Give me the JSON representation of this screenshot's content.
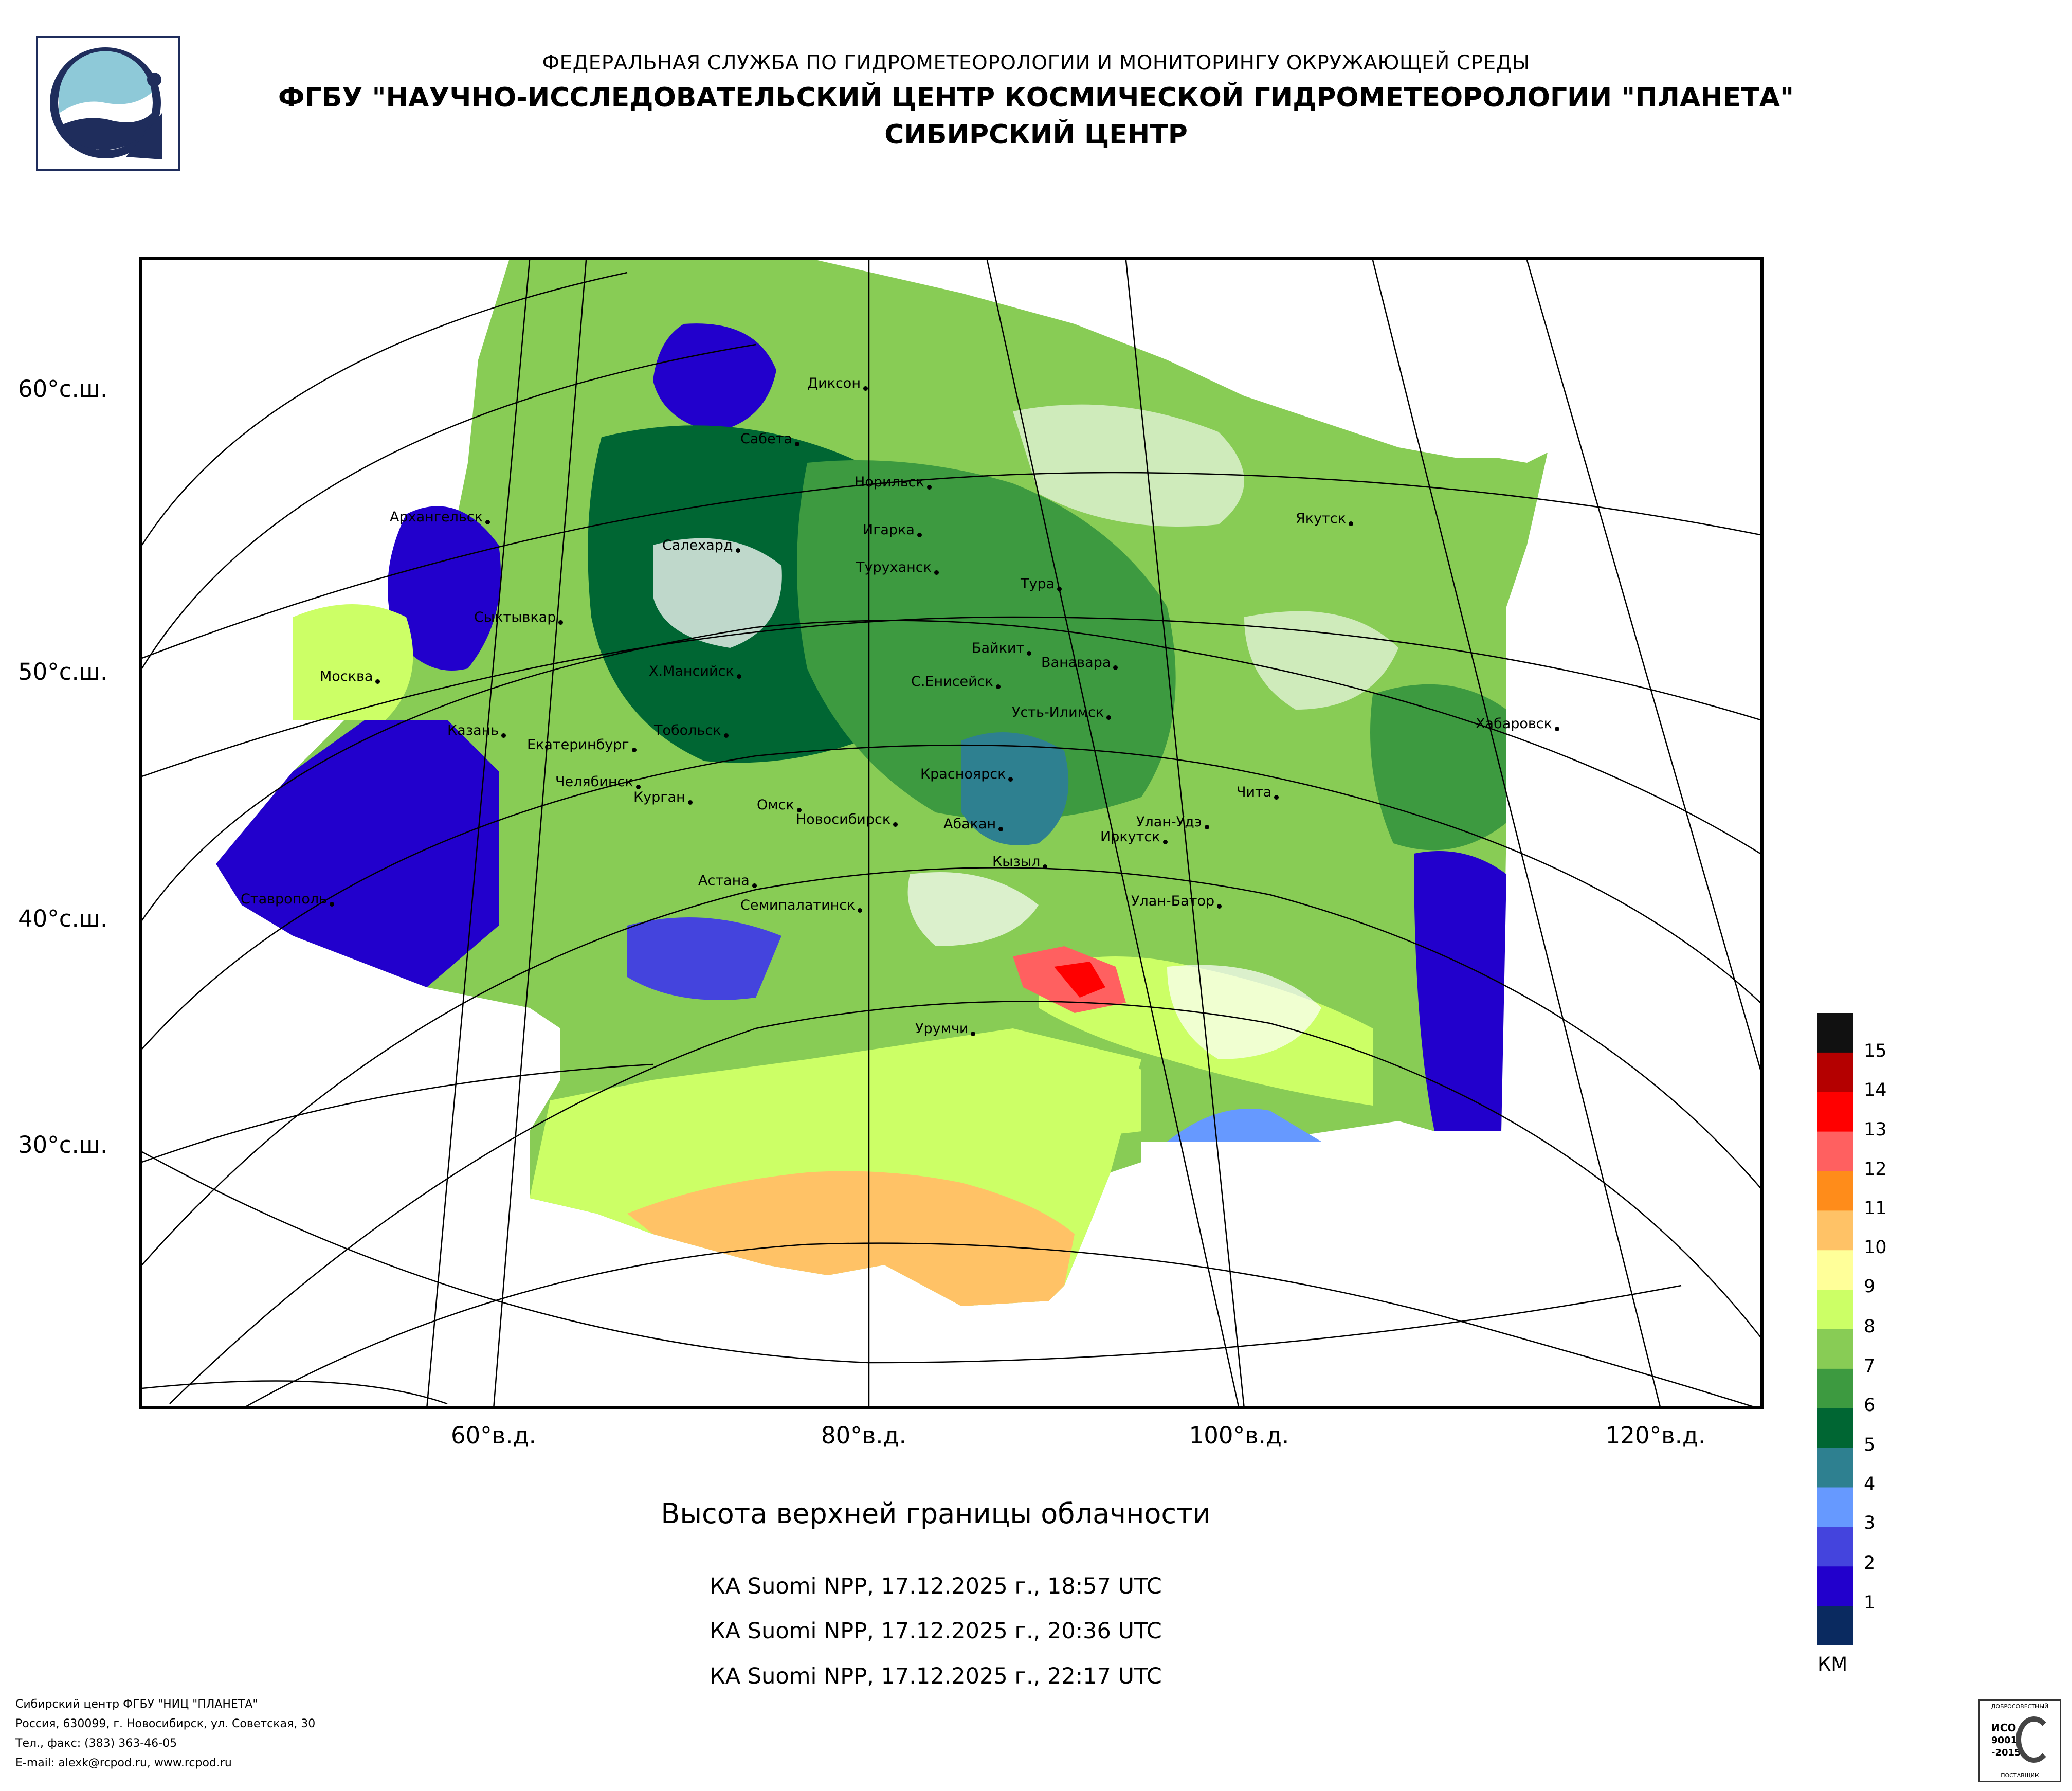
{
  "header": {
    "agency": "ФЕДЕРАЛЬНАЯ СЛУЖБА ПО ГИДРОМЕТЕОРОЛОГИИ И МОНИТОРИНГУ ОКРУЖАЮЩЕЙ СРЕДЫ",
    "institute": "ФГБУ \"НАУЧНО-ИССЛЕДОВАТЕЛЬСКИЙ ЦЕНТР КОСМИЧЕСКОЙ ГИДРОМЕТЕОРОЛОГИИ \"ПЛАНЕТА\"",
    "center": "СИБИРСКИЙ ЦЕНТР"
  },
  "map": {
    "lat_labels": [
      "60°с.ш.",
      "50°с.ш.",
      "40°с.ш.",
      "30°с.ш."
    ],
    "lon_labels": [
      "60°в.д.",
      "80°в.д.",
      "100°в.д.",
      "120°в.д."
    ],
    "cities": [
      "Диксон",
      "Сабета",
      "Норильск",
      "Архангельск",
      "Игарка",
      "Салехард",
      "Туруханск",
      "Тура",
      "Якутск",
      "Сыктывкар",
      "Байкит",
      "Ванавара",
      "Москва",
      "Х.Мансийск",
      "С.Енисейск",
      "Усть-Илимск",
      "Тобольск",
      "Хабаровск",
      "Казань",
      "Екатеринбург",
      "Челябинск",
      "Красноярск",
      "Курган",
      "Чита",
      "Омск",
      "Новосибирск",
      "Абакан",
      "Улан-Удэ",
      "Иркутск",
      "Кызыл",
      "Астана",
      "Ставрополь",
      "Семипалатинск",
      "Улан-Батор",
      "Урумчи"
    ]
  },
  "legend": {
    "unit": "КМ",
    "levels": [
      "15",
      "14",
      "13",
      "12",
      "11",
      "10",
      "9",
      "8",
      "7",
      "6",
      "5",
      "4",
      "3",
      "2",
      "1"
    ],
    "colors": [
      "#111111",
      "#b40000",
      "#ff0000",
      "#ff6060",
      "#ff8c1a",
      "#ffc266",
      "#ffff99",
      "#ccff66",
      "#88cc55",
      "#3d9a40",
      "#006633",
      "#2e8090",
      "#6699ff",
      "#4444dd",
      "#2200cc",
      "#0a2a60"
    ]
  },
  "caption": {
    "title": "Высота верхней границы облачности",
    "passes": [
      "КА Suomi NPP, 17.12.2025 г., 18:57 UTC",
      "КА Suomi NPP, 17.12.2025 г., 20:36 UTC",
      "КА Suomi NPP, 17.12.2025 г., 22:17 UTC"
    ]
  },
  "footer": {
    "lines": [
      "Сибирский центр ФГБУ \"НИЦ \"ПЛАНЕТА\"",
      "Россия, 630099, г. Новосибирск, ул. Советская, 30",
      "Тел., факс: (383) 363-46-05",
      "E-mail: alexk@rcpod.ru, www.rcpod.ru"
    ]
  },
  "cert": {
    "top": "ДОБРОСОВЕСТНЫЙ",
    "mid1": "ИСО",
    "mid2": "9001",
    "mid3": "-2015",
    "bottom": "ПОСТАВЩИК"
  }
}
